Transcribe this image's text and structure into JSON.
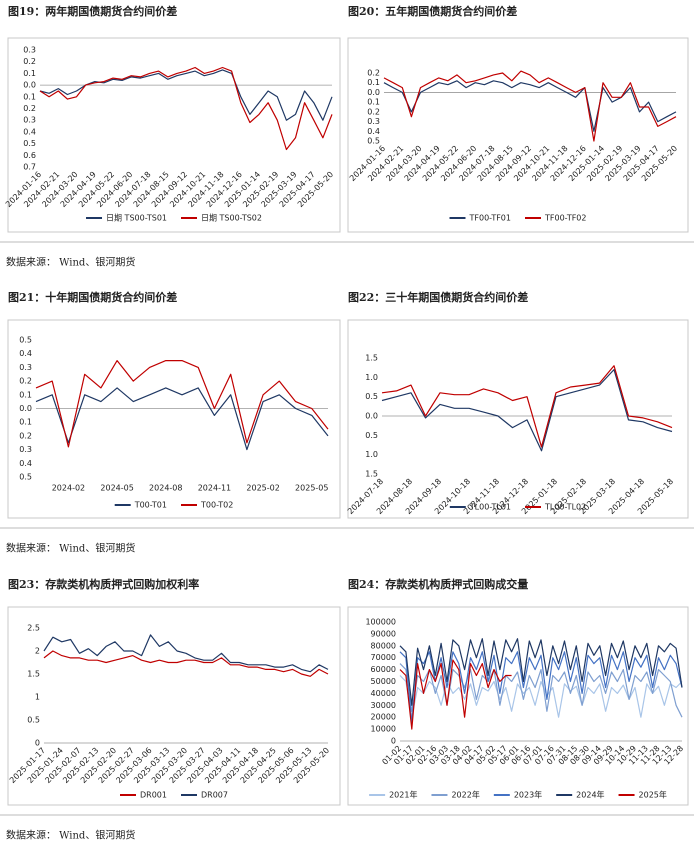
{
  "sources": [
    "数据来源：  Wind、银河期货",
    "数据来源：  Wind、银河期货",
    "数据来源：  Wind、银河期货"
  ],
  "chart_data": [
    {
      "type": "line",
      "title": "图19：两年期国债期货合约间价差",
      "categories": [
        "2024-01-16",
        null,
        "2024-02-21",
        null,
        "2024-03-20",
        null,
        "2024-04-19",
        null,
        "2024-05-22",
        null,
        "2024-06-20",
        null,
        "2024-07-18",
        null,
        "2024-08-15",
        null,
        "2024-09-12",
        null,
        "2024-10-21",
        null,
        "2024-11-18",
        null,
        "2024-12-16",
        null,
        "2025-01-14",
        null,
        "2025-02-19",
        null,
        "2025-03-19",
        null,
        "2025-04-17",
        null,
        "2025-05-20"
      ],
      "series": [
        {
          "name": "日期 TS00-TS01",
          "color": "#1f3864",
          "values": [
            -0.05,
            -0.07,
            -0.03,
            -0.08,
            -0.05,
            0.0,
            0.03,
            0.02,
            0.05,
            0.04,
            0.07,
            0.06,
            0.08,
            0.1,
            0.05,
            0.08,
            0.1,
            0.12,
            0.08,
            0.1,
            0.13,
            0.1,
            -0.1,
            -0.25,
            -0.15,
            -0.05,
            -0.1,
            -0.3,
            -0.25,
            -0.05,
            -0.15,
            -0.3,
            -0.1
          ]
        },
        {
          "name": "日期 TS00-TS02",
          "color": "#c00000",
          "values": [
            -0.05,
            -0.1,
            -0.05,
            -0.12,
            -0.1,
            0.0,
            0.02,
            0.03,
            0.06,
            0.05,
            0.08,
            0.07,
            0.1,
            0.12,
            0.07,
            0.1,
            0.12,
            0.15,
            0.1,
            0.12,
            0.15,
            0.12,
            -0.15,
            -0.32,
            -0.25,
            -0.15,
            -0.3,
            -0.55,
            -0.45,
            -0.15,
            -0.3,
            -0.45,
            -0.25
          ]
        }
      ],
      "ylim": [
        -0.7,
        0.3
      ],
      "yticks": [
        0.3,
        0.2,
        0.1,
        {
          "value": 0,
          "label": "0.0"
        },
        {
          "value": -0.1,
          "label": "0.1"
        },
        {
          "value": -0.2,
          "label": "0.2"
        },
        {
          "value": -0.3,
          "label": "0.3"
        },
        {
          "value": -0.4,
          "label": "0.4"
        },
        {
          "value": -0.5,
          "label": "0.5"
        },
        {
          "value": -0.6,
          "label": "0.6"
        },
        {
          "value": -0.7,
          "label": "0.7"
        }
      ]
    },
    {
      "type": "line",
      "title": "图20：五年期国债期货合约间价差",
      "categories": [
        "2024-01-16",
        null,
        "2024-02-21",
        null,
        "2024-03-20",
        null,
        "2024-04-19",
        null,
        "2024-05-22",
        null,
        "2024-06-20",
        null,
        "2024-07-18",
        null,
        "2024-08-15",
        null,
        "2024-09-12",
        null,
        "2024-10-21",
        null,
        "2024-11-18",
        null,
        "2024-12-16",
        null,
        "2025-01-14",
        null,
        "2025-02-19",
        null,
        "2025-03-19",
        null,
        "2025-04-17",
        null,
        "2025-05-20"
      ],
      "series": [
        {
          "name": "TF00-TF01",
          "color": "#1f3864",
          "values": [
            0.1,
            0.05,
            0.0,
            -0.2,
            0.0,
            0.05,
            0.1,
            0.08,
            0.12,
            0.05,
            0.1,
            0.08,
            0.12,
            0.1,
            0.05,
            0.1,
            0.08,
            0.05,
            0.1,
            0.05,
            0.0,
            -0.05,
            0.05,
            -0.4,
            0.05,
            -0.1,
            -0.05,
            0.05,
            -0.2,
            -0.1,
            -0.3,
            -0.25,
            -0.2
          ]
        },
        {
          "name": "TF00-TF02",
          "color": "#c00000",
          "values": [
            0.15,
            0.1,
            0.05,
            -0.25,
            0.05,
            0.1,
            0.15,
            0.12,
            0.18,
            0.1,
            0.12,
            0.15,
            0.18,
            0.2,
            0.12,
            0.22,
            0.18,
            0.1,
            0.15,
            0.1,
            0.05,
            0.0,
            0.05,
            -0.5,
            0.1,
            -0.05,
            -0.05,
            0.1,
            -0.15,
            -0.15,
            -0.35,
            -0.3,
            -0.25
          ]
        }
      ],
      "ylim": [
        -0.5,
        0.2
      ],
      "yticks": [
        0.2,
        0.1,
        {
          "value": 0,
          "label": "0.0"
        },
        {
          "value": -0.1,
          "label": "0.1"
        },
        {
          "value": -0.2,
          "label": "0.2"
        },
        {
          "value": -0.3,
          "label": "0.3"
        },
        {
          "value": -0.4,
          "label": "0.4"
        },
        {
          "value": -0.5,
          "label": "0.5"
        }
      ]
    },
    {
      "type": "line",
      "title": "图21：十年期国债期货合约间价差",
      "categories": [
        null,
        null,
        "2024-02",
        null,
        null,
        "2024-05",
        null,
        null,
        "2024-08",
        null,
        null,
        "2024-11",
        null,
        null,
        "2025-02",
        null,
        null,
        "2025-05",
        null
      ],
      "series": [
        {
          "name": "T00-T01",
          "color": "#1f3864",
          "values": [
            0.05,
            0.1,
            -0.25,
            0.1,
            0.05,
            0.15,
            0.05,
            0.1,
            0.15,
            0.1,
            0.15,
            -0.05,
            0.1,
            -0.3,
            0.05,
            0.1,
            0.0,
            -0.05,
            -0.2
          ]
        },
        {
          "name": "T00-T02",
          "color": "#c00000",
          "values": [
            0.15,
            0.2,
            -0.28,
            0.25,
            0.15,
            0.35,
            0.2,
            0.3,
            0.35,
            0.35,
            0.3,
            0.0,
            0.25,
            -0.25,
            0.1,
            0.2,
            0.05,
            0.0,
            -0.15
          ]
        }
      ],
      "ylim": [
        -0.5,
        0.5
      ],
      "yticks": [
        0.5,
        0.4,
        0.3,
        0.2,
        0.1,
        {
          "value": 0,
          "label": "0.0"
        },
        {
          "value": -0.1,
          "label": "0.1"
        },
        {
          "value": -0.2,
          "label": "0.2"
        },
        {
          "value": -0.3,
          "label": "0.3"
        },
        {
          "value": -0.4,
          "label": "0.4"
        },
        {
          "value": -0.5,
          "label": "0.5"
        }
      ]
    },
    {
      "type": "line",
      "title": "图22：三十年期国债期货合约间价差",
      "categories": [
        "2024-07-18",
        null,
        "2024-08-18",
        null,
        "2024-09-18",
        null,
        "2024-10-18",
        null,
        "2024-11-18",
        null,
        "2024-12-18",
        null,
        "2025-01-18",
        null,
        "2025-02-18",
        null,
        "2025-03-18",
        null,
        "2025-04-18",
        null,
        "2025-05-18"
      ],
      "series": [
        {
          "name": "TL00-TL01",
          "color": "#1f3864",
          "values": [
            0.4,
            0.5,
            0.6,
            -0.05,
            0.3,
            0.2,
            0.2,
            0.1,
            0.0,
            -0.3,
            -0.1,
            -0.9,
            0.5,
            0.6,
            0.7,
            0.8,
            1.2,
            -0.1,
            -0.15,
            -0.3,
            -0.4
          ]
        },
        {
          "name": "TL00-TL02",
          "color": "#c00000",
          "values": [
            0.6,
            0.65,
            0.8,
            0.0,
            0.6,
            0.55,
            0.55,
            0.7,
            0.6,
            0.4,
            0.5,
            -0.8,
            0.6,
            0.75,
            0.8,
            0.85,
            1.3,
            0.0,
            -0.05,
            -0.15,
            -0.3
          ]
        }
      ],
      "ylim": [
        -1.5,
        1.5
      ],
      "yticks": [
        1.5,
        {
          "value": 1,
          "label": "1.0"
        },
        0.5,
        {
          "value": 0,
          "label": "0.0"
        },
        {
          "value": -0.5,
          "label": "0.5"
        },
        {
          "value": -1,
          "label": "1.0"
        },
        {
          "value": -1.5,
          "label": "1.5"
        }
      ]
    },
    {
      "type": "line",
      "title": "图23：存款类机构质押式回购加权利率",
      "categories": [
        "2025-01-17",
        null,
        "2025-01-24",
        null,
        "2025-02-07",
        null,
        "2025-02-13",
        null,
        "2025-02-20",
        null,
        "2025-02-27",
        null,
        "2025-03-06",
        null,
        "2025-03-13",
        null,
        "2025-03-20",
        null,
        "2025-03-27",
        null,
        "2025-04-03",
        null,
        "2025-04-11",
        null,
        "2025-04-18",
        null,
        "2025-04-25",
        null,
        "2025-05-06",
        null,
        "2025-05-13",
        null,
        "2025-05-20"
      ],
      "series": [
        {
          "name": "DR001",
          "color": "#c00000",
          "values": [
            1.85,
            2.0,
            1.9,
            1.85,
            1.85,
            1.8,
            1.8,
            1.75,
            1.8,
            1.85,
            1.9,
            1.8,
            1.75,
            1.8,
            1.75,
            1.75,
            1.8,
            1.8,
            1.75,
            1.75,
            1.85,
            1.7,
            1.7,
            1.65,
            1.65,
            1.6,
            1.6,
            1.55,
            1.6,
            1.5,
            1.45,
            1.6,
            1.5
          ]
        },
        {
          "name": "DR007",
          "color": "#1f3864",
          "values": [
            2.0,
            2.3,
            2.2,
            2.25,
            1.95,
            2.05,
            1.9,
            2.1,
            2.2,
            2.0,
            2.0,
            1.9,
            2.35,
            2.1,
            2.2,
            2.0,
            1.95,
            1.85,
            1.8,
            1.8,
            1.95,
            1.75,
            1.75,
            1.7,
            1.7,
            1.7,
            1.65,
            1.65,
            1.7,
            1.6,
            1.55,
            1.7,
            1.6
          ]
        }
      ],
      "ylim": [
        0,
        2.5
      ],
      "yticks": [
        0,
        0.5,
        1,
        1.5,
        2,
        2.5
      ]
    },
    {
      "type": "line",
      "title": "图24：存款类机构质押式回购成交量",
      "categories": [
        "01-02",
        null,
        "01-17",
        null,
        "02-01",
        null,
        "02-16",
        null,
        "03-03",
        null,
        "03-18",
        null,
        "04-02",
        null,
        "04-17",
        null,
        "05-02",
        null,
        "05-17",
        null,
        "06-01",
        null,
        "06-16",
        null,
        "07-01",
        null,
        "07-16",
        null,
        "07-31",
        null,
        "08-15",
        null,
        "08-30",
        null,
        "09-14",
        null,
        "09-29",
        null,
        "10-14",
        null,
        "10-29",
        null,
        "11-13",
        null,
        "11-28",
        null,
        "12-13",
        null,
        "12-28"
      ],
      "series": [
        {
          "name": "2021年",
          "color": "#a9c5e8",
          "values": [
            55000,
            50000,
            20000,
            45000,
            40000,
            50000,
            45000,
            30000,
            50000,
            40000,
            45000,
            35000,
            48000,
            30000,
            45000,
            42000,
            50000,
            35000,
            45000,
            25000,
            48000,
            40000,
            45000,
            30000,
            50000,
            38000,
            45000,
            20000,
            48000,
            42000,
            46000,
            30000,
            45000,
            40000,
            48000,
            25000,
            45000,
            40000,
            47000,
            35000,
            45000,
            20000,
            48000,
            40000,
            46000,
            30000,
            48000,
            45000,
            50000
          ]
        },
        {
          "name": "2022年",
          "color": "#7f9fd0",
          "values": [
            65000,
            60000,
            25000,
            55000,
            50000,
            60000,
            40000,
            55000,
            30000,
            60000,
            55000,
            45000,
            60000,
            35000,
            55000,
            50000,
            60000,
            30000,
            55000,
            50000,
            58000,
            35000,
            55000,
            45000,
            60000,
            25000,
            55000,
            50000,
            58000,
            40000,
            55000,
            30000,
            58000,
            50000,
            55000,
            40000,
            58000,
            50000,
            60000,
            35000,
            55000,
            50000,
            58000,
            40000,
            60000,
            55000,
            50000,
            30000,
            20000
          ]
        },
        {
          "name": "2023年",
          "color": "#4472c4",
          "values": [
            75000,
            70000,
            15000,
            70000,
            65000,
            75000,
            50000,
            70000,
            45000,
            75000,
            65000,
            40000,
            70000,
            60000,
            75000,
            50000,
            72000,
            40000,
            70000,
            65000,
            75000,
            45000,
            70000,
            60000,
            72000,
            35000,
            70000,
            60000,
            75000,
            50000,
            70000,
            40000,
            72000,
            65000,
            70000,
            45000,
            72000,
            60000,
            75000,
            50000,
            70000,
            62000,
            72000,
            45000,
            70000,
            60000,
            72000,
            65000,
            45000
          ]
        },
        {
          "name": "2024年",
          "color": "#1f3864",
          "values": [
            80000,
            75000,
            30000,
            78000,
            60000,
            80000,
            55000,
            82000,
            50000,
            85000,
            80000,
            60000,
            85000,
            70000,
            86000,
            55000,
            84000,
            60000,
            85000,
            75000,
            86000,
            50000,
            84000,
            70000,
            85000,
            55000,
            80000,
            65000,
            84000,
            60000,
            80000,
            50000,
            82000,
            72000,
            80000,
            55000,
            82000,
            70000,
            84000,
            60000,
            80000,
            70000,
            82000,
            55000,
            80000,
            75000,
            82000,
            78000,
            45000
          ]
        },
        {
          "name": "2025年",
          "color": "#c00000",
          "values": [
            60000,
            55000,
            10000,
            65000,
            40000,
            60000,
            50000,
            65000,
            30000,
            68000,
            60000,
            20000,
            65000,
            55000,
            65000,
            45000,
            60000,
            50000,
            55000,
            55000,
            null,
            null,
            null,
            null,
            null,
            null,
            null,
            null,
            null,
            null,
            null,
            null,
            null,
            null,
            null,
            null,
            null,
            null,
            null,
            null,
            null,
            null,
            null,
            null,
            null,
            null,
            null,
            null,
            null
          ]
        }
      ],
      "ylim": [
        0,
        100000
      ],
      "yticks": [
        0,
        10000,
        20000,
        30000,
        40000,
        50000,
        60000,
        70000,
        80000,
        90000,
        100000
      ]
    }
  ]
}
